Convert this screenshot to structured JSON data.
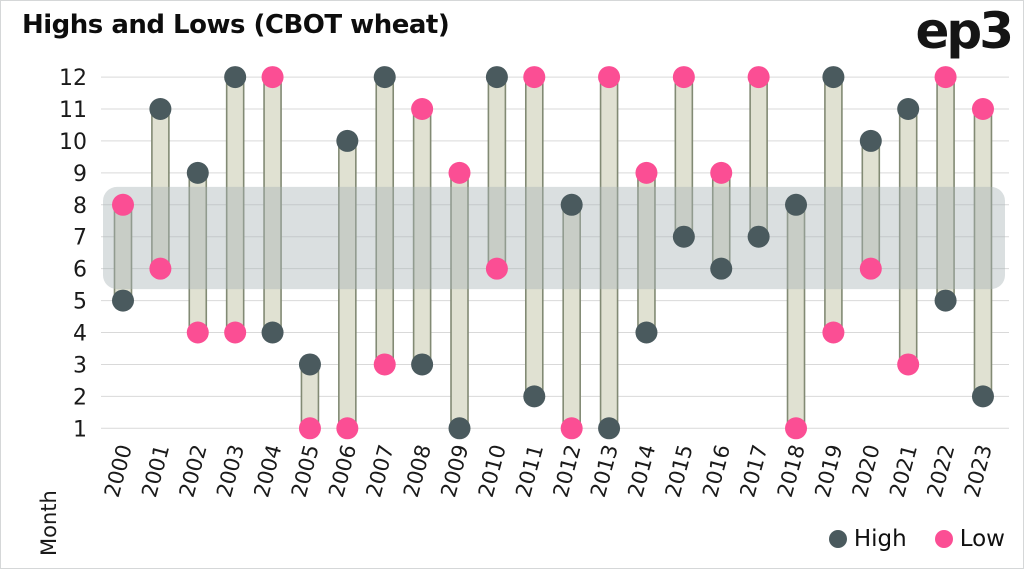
{
  "header": {
    "title": "Highs and Lows (CBOT wheat)",
    "logo": "ep3"
  },
  "chart_data": {
    "type": "bar",
    "variant": "dumbbell-range",
    "title": "Highs and Lows (CBOT wheat)",
    "xlabel": "",
    "ylabel": "Month",
    "categories": [
      "2000",
      "2001",
      "2002",
      "2003",
      "2004",
      "2005",
      "2006",
      "2007",
      "2008",
      "2009",
      "2010",
      "2011",
      "2012",
      "2013",
      "2014",
      "2015",
      "2016",
      "2017",
      "2018",
      "2019",
      "2020",
      "2021",
      "2022",
      "2023"
    ],
    "series": [
      {
        "name": "High",
        "color": "#4a5a5e",
        "values": [
          5,
          11,
          9,
          12,
          4,
          3,
          10,
          12,
          3,
          1,
          12,
          2,
          8,
          1,
          4,
          7,
          6,
          7,
          8,
          12,
          10,
          11,
          5,
          2
        ]
      },
      {
        "name": "Low",
        "color": "#fb4e94",
        "values": [
          8,
          6,
          4,
          4,
          12,
          1,
          1,
          3,
          11,
          9,
          6,
          12,
          1,
          12,
          9,
          12,
          9,
          12,
          1,
          4,
          6,
          3,
          12,
          11
        ]
      }
    ],
    "yticks": [
      1,
      2,
      3,
      4,
      5,
      6,
      7,
      8,
      9,
      10,
      11,
      12
    ],
    "ylim": [
      1,
      12
    ],
    "grid": true,
    "gridline_color": "#d9d9d9",
    "highlight_band": {
      "from": 5.36,
      "to": 8.56,
      "color": "rgba(167,178,181,0.42)"
    },
    "bar_style": {
      "fill": "#e0e1d2",
      "stroke": "#828a74"
    },
    "legend_position": "bottom-right"
  },
  "legend": {
    "items": [
      {
        "label": "High",
        "color": "#4a5a5e"
      },
      {
        "label": "Low",
        "color": "#fb4e94"
      }
    ]
  }
}
